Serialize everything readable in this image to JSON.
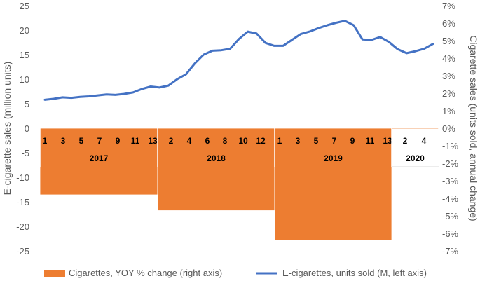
{
  "chart_data": {
    "type": "bar+line",
    "left_axis": {
      "label": "E-cigarette sales (million units)",
      "ticks": [
        "25",
        "20",
        "15",
        "10",
        "5",
        "0",
        "-5",
        "-10",
        "-15",
        "-20",
        "-25"
      ],
      "range": [
        -25,
        25
      ]
    },
    "right_axis": {
      "label": "Cigarette sales (units sold, annual change)",
      "ticks": [
        "7%",
        "6%",
        "5%",
        "4%",
        "3%",
        "2%",
        "1%",
        "0%",
        "-1%",
        "-2%",
        "-3%",
        "-4%",
        "-5%",
        "-6%",
        "-7%"
      ],
      "range": [
        -7,
        7
      ]
    },
    "periods": [
      {
        "year": "2017",
        "months": [
          "1",
          "3",
          "5",
          "7",
          "9",
          "11",
          "13"
        ]
      },
      {
        "year": "2018",
        "months": [
          "2",
          "4",
          "6",
          "8",
          "10",
          "12"
        ]
      },
      {
        "year": "2019",
        "months": [
          "1",
          "3",
          "5",
          "7",
          "9",
          "11",
          "13"
        ]
      },
      {
        "year": "2020",
        "months": [
          "2",
          "4"
        ]
      }
    ],
    "series": [
      {
        "name": "Cigarettes, YOY % change (right axis)",
        "type": "bar",
        "color": "#ED7D31",
        "values_by_year": [
          {
            "year": "2017",
            "value": -3.8
          },
          {
            "year": "2018",
            "value": -4.7
          },
          {
            "year": "2019",
            "value": -6.4
          },
          {
            "year": "2020",
            "value": 0.05
          }
        ]
      },
      {
        "name": "E-cigarettes, units sold (M, left axis)",
        "type": "line",
        "color": "#4472C4",
        "values": [
          5.8,
          6.0,
          6.3,
          6.2,
          6.4,
          6.5,
          6.7,
          6.9,
          6.8,
          7.0,
          7.3,
          8.0,
          8.5,
          8.3,
          8.7,
          10.0,
          11.0,
          13.2,
          15.0,
          15.8,
          15.9,
          16.2,
          18.2,
          19.7,
          19.3,
          17.4,
          16.8,
          16.8,
          18.0,
          19.2,
          19.7,
          20.4,
          21.0,
          21.5,
          21.9,
          21.0,
          18.1,
          18.0,
          18.6,
          17.6,
          16.1,
          15.3,
          15.7,
          16.2,
          17.2
        ]
      }
    ],
    "legend_position": "bottom",
    "grid": false
  }
}
